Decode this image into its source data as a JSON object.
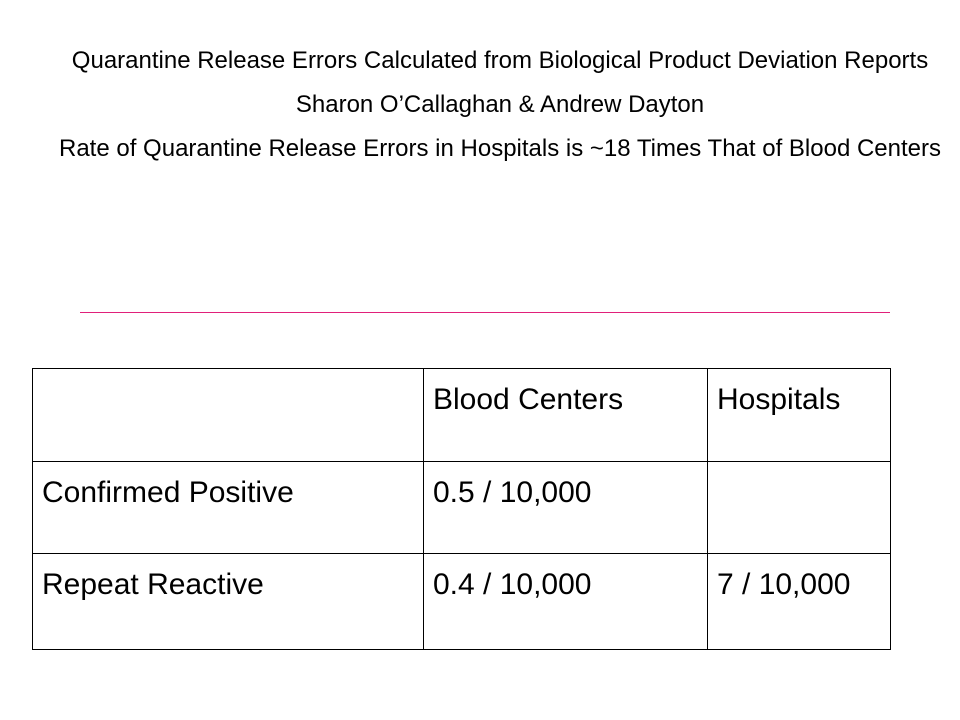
{
  "header": {
    "title": "Quarantine Release Errors Calculated from Biological Product Deviation Reports",
    "authors": "Sharon O’Callaghan & Andrew Dayton",
    "subtitle": "Rate of Quarantine Release Errors in Hospitals is ~18 Times That of Blood Centers"
  },
  "colors": {
    "divider": "#e0207a",
    "text": "#000000",
    "background": "#ffffff"
  },
  "table": {
    "columns": [
      "",
      "Blood Centers",
      "Hospitals"
    ],
    "rows": [
      {
        "label": "Confirmed Positive",
        "blood_centers": "0.5 / 10,000",
        "hospitals": ""
      },
      {
        "label": "Repeat Reactive",
        "blood_centers": "0.4 / 10,000",
        "hospitals": "7 / 10,000"
      }
    ]
  }
}
